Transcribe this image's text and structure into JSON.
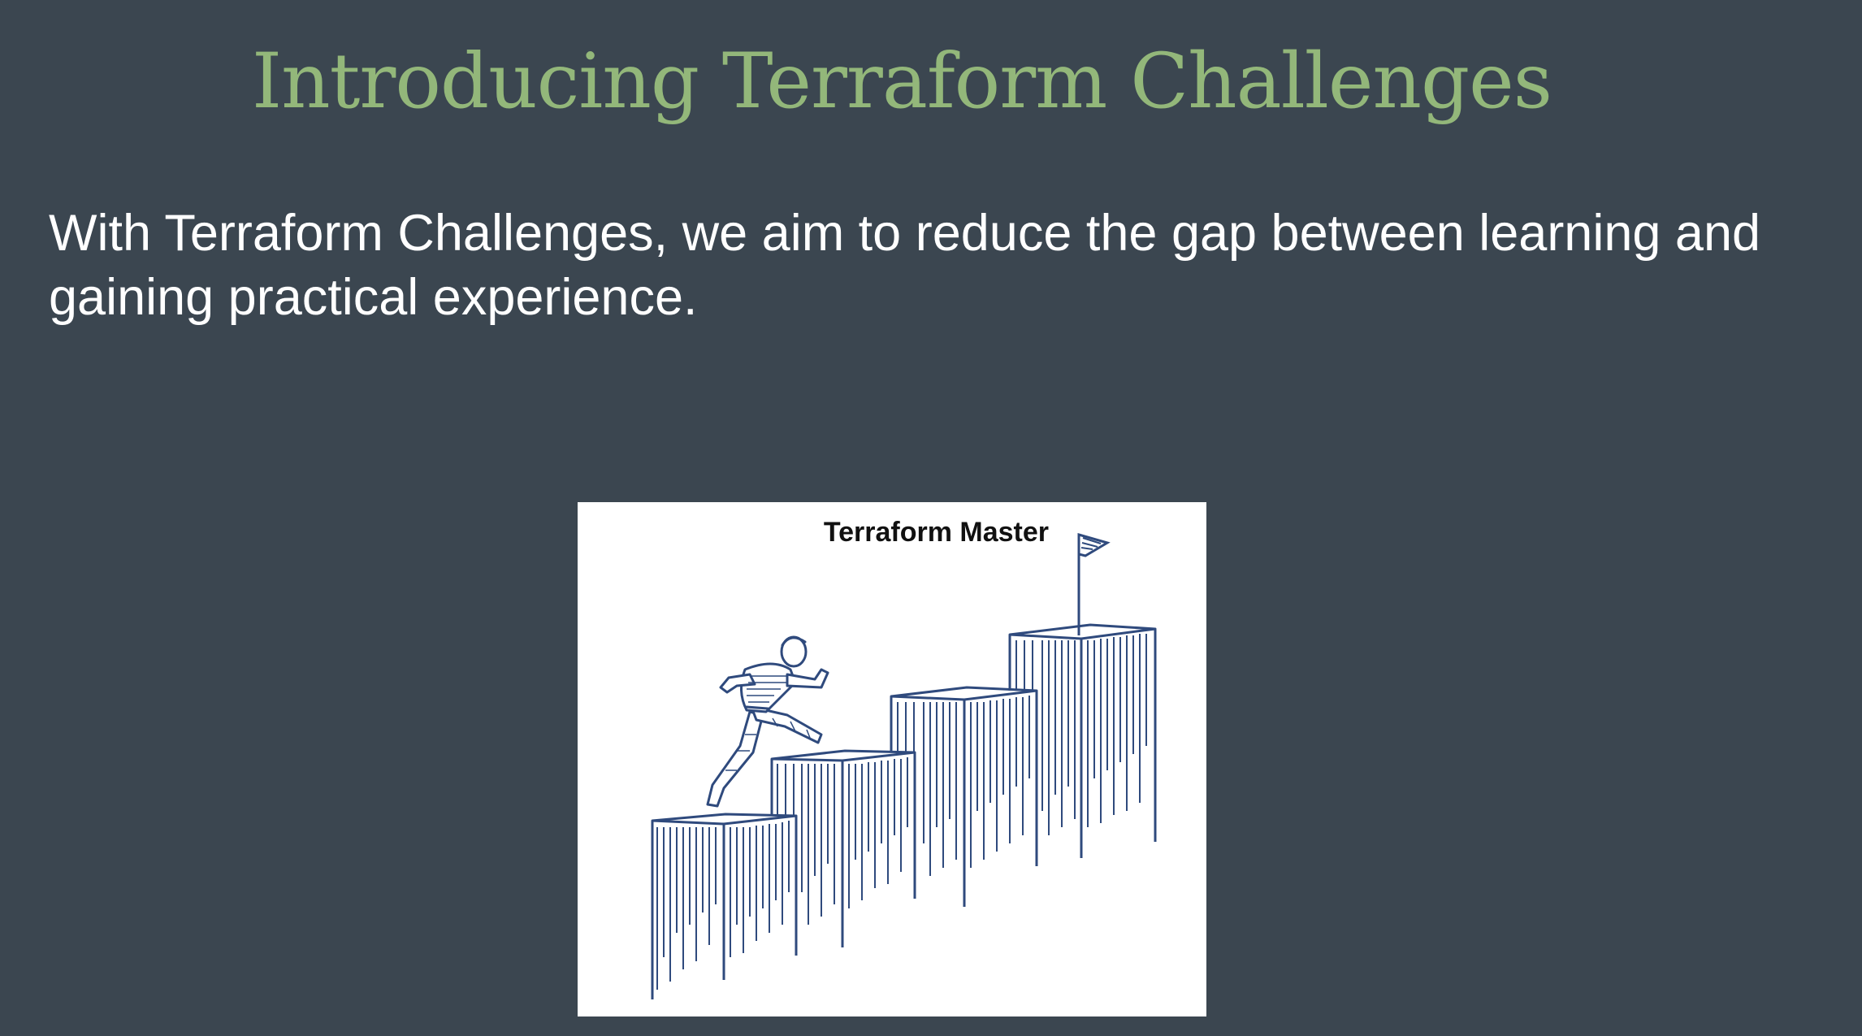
{
  "slide": {
    "title": "Introducing Terraform Challenges",
    "body": "With Terraform Challenges, we aim to reduce the gap between learning and gaining practical experience.",
    "illustration": {
      "caption": "Terraform Master",
      "ink_color": "#2f4a7d",
      "background": "#ffffff"
    }
  },
  "colors": {
    "slide_background": "#3b4650",
    "title_color": "#93b77a",
    "body_color": "#ffffff"
  }
}
